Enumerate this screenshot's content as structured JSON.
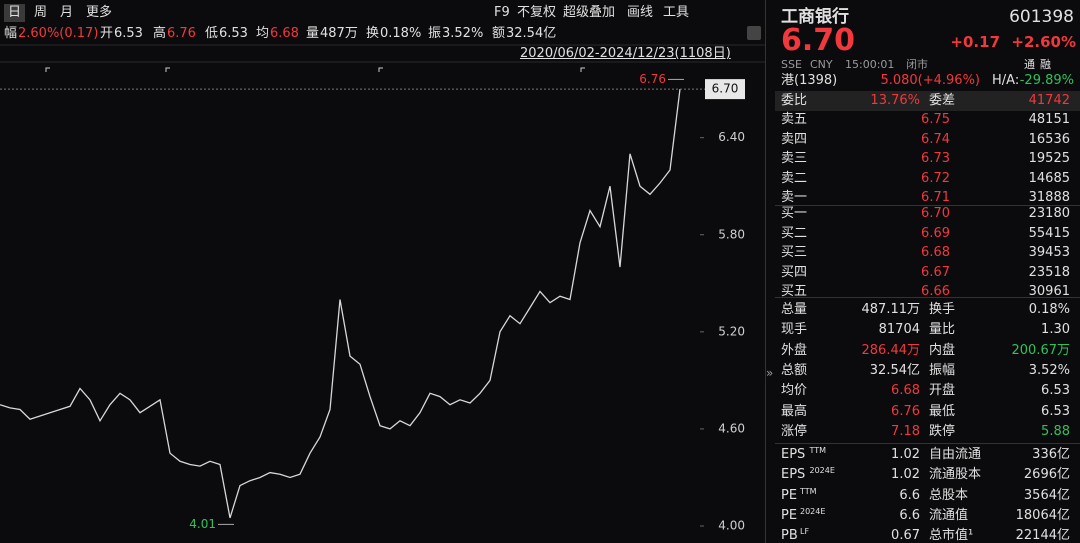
{
  "toolbar": {
    "periods": [
      "日",
      "周",
      "月",
      "更多"
    ],
    "tools": [
      "F9",
      "不复权",
      "超级叠加",
      "画线",
      "工具"
    ]
  },
  "stats_bar": [
    [
      "幅",
      "2.60%(0.17)"
    ],
    [
      "开",
      "6.53"
    ],
    [
      "高",
      "6.76"
    ],
    [
      "低",
      "6.53"
    ],
    [
      "均",
      "6.68"
    ],
    [
      "量",
      "487万"
    ],
    [
      "换",
      "0.18%"
    ],
    [
      "振",
      "3.52%"
    ],
    [
      "额",
      "32.54亿"
    ]
  ],
  "date_range": "2020/06/02-2024/12/23(1108日)",
  "chart_data": {
    "type": "line",
    "color": "#d8d8d8",
    "values": [
      4.75,
      4.73,
      4.72,
      4.66,
      4.68,
      4.7,
      4.72,
      4.74,
      4.85,
      4.78,
      4.65,
      4.75,
      4.82,
      4.78,
      4.7,
      4.74,
      4.78,
      4.45,
      4.4,
      4.38,
      4.37,
      4.4,
      4.38,
      4.05,
      4.25,
      4.28,
      4.3,
      4.33,
      4.32,
      4.3,
      4.32,
      4.45,
      4.55,
      4.72,
      5.4,
      5.05,
      5.0,
      4.8,
      4.62,
      4.6,
      4.65,
      4.62,
      4.7,
      4.82,
      4.8,
      4.75,
      4.78,
      4.76,
      4.82,
      4.9,
      5.2,
      5.3,
      5.25,
      5.35,
      5.45,
      5.38,
      5.42,
      5.4,
      5.75,
      5.95,
      5.85,
      6.1,
      5.6,
      6.3,
      6.1,
      6.05,
      6.12,
      6.2,
      6.7
    ],
    "ylim": [
      3.895,
      6.88
    ],
    "yticks": [
      {
        "value": 6.4,
        "label": "6.40"
      },
      {
        "value": 5.8,
        "label": "5.80"
      },
      {
        "value": 5.2,
        "label": "5.20"
      },
      {
        "value": 4.6,
        "label": "4.60"
      },
      {
        "value": 4.0,
        "label": "4.00"
      }
    ],
    "annotations": [
      {
        "value": 6.76,
        "label": "6.76"
      },
      {
        "value": 4.01,
        "label": "4.01"
      }
    ],
    "last": {
      "value": 6.7,
      "label": "6.70"
    }
  },
  "quote": {
    "name": "工商银行",
    "code": "601398",
    "price": "6.70",
    "change": "+0.17",
    "change_pct": "+2.60%",
    "market": "SSE",
    "currency": "CNY",
    "time": "15:00:01",
    "status": "闭市",
    "tags": [
      "通",
      "融"
    ]
  },
  "hk": {
    "label": "港(1398)",
    "value": "5.080(+4.96%)",
    "ha_label": "H/A:",
    "ha_value": "-29.89%"
  },
  "order_ratio": [
    "委比",
    "13.76%",
    "委差",
    "41742"
  ],
  "asks": [
    [
      "卖五",
      "6.75",
      "48151"
    ],
    [
      "卖四",
      "6.74",
      "16536"
    ],
    [
      "卖三",
      "6.73",
      "19525"
    ],
    [
      "卖二",
      "6.72",
      "14685"
    ],
    [
      "卖一",
      "6.71",
      "31888"
    ]
  ],
  "bids": [
    [
      "买一",
      "6.70",
      "23180"
    ],
    [
      "买二",
      "6.69",
      "55415"
    ],
    [
      "买三",
      "6.68",
      "39453"
    ],
    [
      "买四",
      "6.67",
      "23518"
    ],
    [
      "买五",
      "6.66",
      "30961"
    ]
  ],
  "stats": [
    [
      "总量",
      "487.11万",
      "换手",
      "0.18%"
    ],
    [
      "现手",
      "81704",
      "量比",
      "1.30"
    ],
    [
      "外盘",
      "286.44万",
      "内盘",
      "200.67万"
    ],
    [
      "总额",
      "32.54亿",
      "振幅",
      "3.52%"
    ],
    [
      "均价",
      "6.68",
      "开盘",
      "6.53"
    ],
    [
      "最高",
      "6.76",
      "最低",
      "6.53"
    ],
    [
      "涨停",
      "7.18",
      "跌停",
      "5.88"
    ]
  ],
  "fundamentals": [
    [
      "EPS",
      "TTM",
      "1.02",
      "自由流通",
      "336亿"
    ],
    [
      "EPS",
      "2024E",
      "1.02",
      "流通股本",
      "2696亿"
    ],
    [
      "PE",
      "TTM",
      "6.6",
      "总股本",
      "3564亿"
    ],
    [
      "PE",
      "2024E",
      "6.6",
      "流通值",
      "18064亿"
    ],
    [
      "PB",
      "LF",
      "0.67",
      "总市值¹",
      "22144亿"
    ]
  ]
}
